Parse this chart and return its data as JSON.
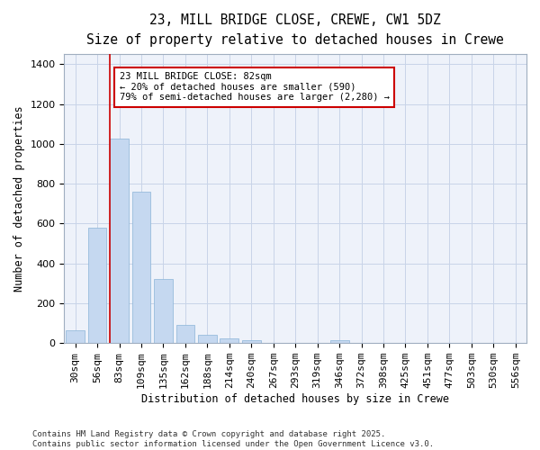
{
  "title_line1": "23, MILL BRIDGE CLOSE, CREWE, CW1 5DZ",
  "title_line2": "Size of property relative to detached houses in Crewe",
  "xlabel": "Distribution of detached houses by size in Crewe",
  "ylabel": "Number of detached properties",
  "categories": [
    "30sqm",
    "56sqm",
    "83sqm",
    "109sqm",
    "135sqm",
    "162sqm",
    "188sqm",
    "214sqm",
    "240sqm",
    "267sqm",
    "293sqm",
    "319sqm",
    "346sqm",
    "372sqm",
    "398sqm",
    "425sqm",
    "451sqm",
    "477sqm",
    "503sqm",
    "530sqm",
    "556sqm"
  ],
  "values": [
    65,
    580,
    1025,
    760,
    320,
    90,
    40,
    22,
    15,
    0,
    0,
    0,
    15,
    0,
    0,
    0,
    0,
    0,
    0,
    0,
    0
  ],
  "bar_color": "#c5d8f0",
  "bar_edge_color": "#8ab4d8",
  "grid_color": "#c8d4e8",
  "background_color": "#ffffff",
  "plot_bg_color": "#eef2fa",
  "vline_color": "#cc0000",
  "annotation_text": "23 MILL BRIDGE CLOSE: 82sqm\n← 20% of detached houses are smaller (590)\n79% of semi-detached houses are larger (2,280) →",
  "annotation_box_edgecolor": "#cc0000",
  "annotation_box_facecolor": "#ffffff",
  "ylim": [
    0,
    1450
  ],
  "yticks": [
    0,
    200,
    400,
    600,
    800,
    1000,
    1200,
    1400
  ],
  "footnote": "Contains HM Land Registry data © Crown copyright and database right 2025.\nContains public sector information licensed under the Open Government Licence v3.0.",
  "title_fontsize": 10.5,
  "subtitle_fontsize": 9.5,
  "axis_label_fontsize": 8.5,
  "tick_fontsize": 8,
  "annotation_fontsize": 7.5,
  "footnote_fontsize": 6.5
}
